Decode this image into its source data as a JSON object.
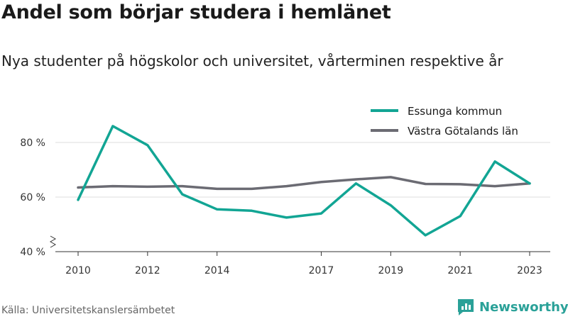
{
  "header": {
    "title": "Andel som börjar studera i hemlänet",
    "subtitle": "Nya studenter på högskolor och universitet, vårterminen respektive år"
  },
  "footer": {
    "source": "Källa: Universitetskanslersämbetet",
    "brand": "Newsworthy",
    "brand_color": "#2aa198"
  },
  "chart_data": {
    "type": "line",
    "title": "Andel som börjar studera i hemlänet",
    "subtitle": "Nya studenter på högskolor och universitet, vårterminen respektive år",
    "x": [
      2010,
      2011,
      2012,
      2013,
      2014,
      2015,
      2016,
      2017,
      2018,
      2019,
      2020,
      2021,
      2022,
      2023
    ],
    "x_tick_labels": [
      "2010",
      "2012",
      "2014",
      "2017",
      "2019",
      "2021",
      "2023"
    ],
    "x_ticks": [
      2010,
      2012,
      2014,
      2017,
      2019,
      2021,
      2023
    ],
    "y_ticks": [
      40,
      60,
      80
    ],
    "y_tick_labels": [
      "40 %",
      "60 %",
      "80 %"
    ],
    "ylim": [
      40,
      85
    ],
    "grid": true,
    "legend_position": "top-right",
    "series": [
      {
        "name": "Essunga kommun",
        "color": "#12a594",
        "values": [
          59,
          86,
          79,
          61,
          55.5,
          55,
          52.5,
          54,
          65,
          57,
          46,
          53,
          73,
          65
        ]
      },
      {
        "name": "Västra Götalands län",
        "color": "#6b6b73",
        "values": [
          63.5,
          64,
          63.8,
          64,
          63,
          63,
          64,
          65.5,
          66.5,
          67.3,
          64.8,
          64.7,
          64,
          65
        ]
      }
    ]
  }
}
